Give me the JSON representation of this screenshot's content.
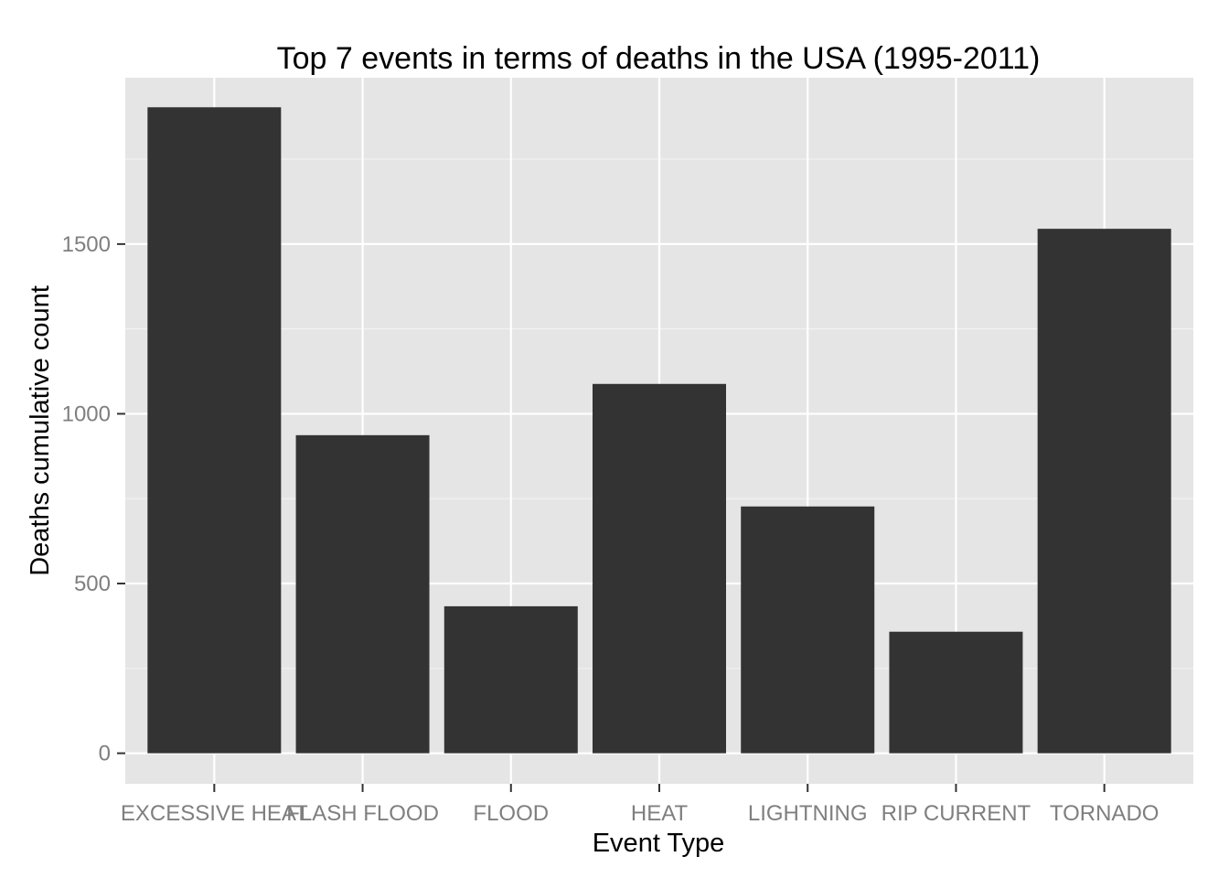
{
  "chart_data": {
    "type": "bar",
    "title": "Top 7 events in terms of deaths in the USA (1995-2011)",
    "xlabel": "Event Type",
    "ylabel": "Deaths cumulative count",
    "categories": [
      "EXCESSIVE HEAT",
      "FLASH FLOOD",
      "FLOOD",
      "HEAT",
      "LIGHTNING",
      "RIP CURRENT",
      "TORNADO"
    ],
    "values": [
      1903,
      937,
      433,
      1088,
      727,
      358,
      1545
    ],
    "ylim": [
      -90,
      1990
    ],
    "yticks": [
      0,
      500,
      1000,
      1500
    ],
    "grid": true,
    "legend": "none",
    "colors": {
      "bar": "#333333",
      "panel": "#e5e5e5",
      "grid_major": "#ffffff",
      "grid_minor": "#f2f2f2",
      "tick_text": "#7f7f7f"
    }
  }
}
